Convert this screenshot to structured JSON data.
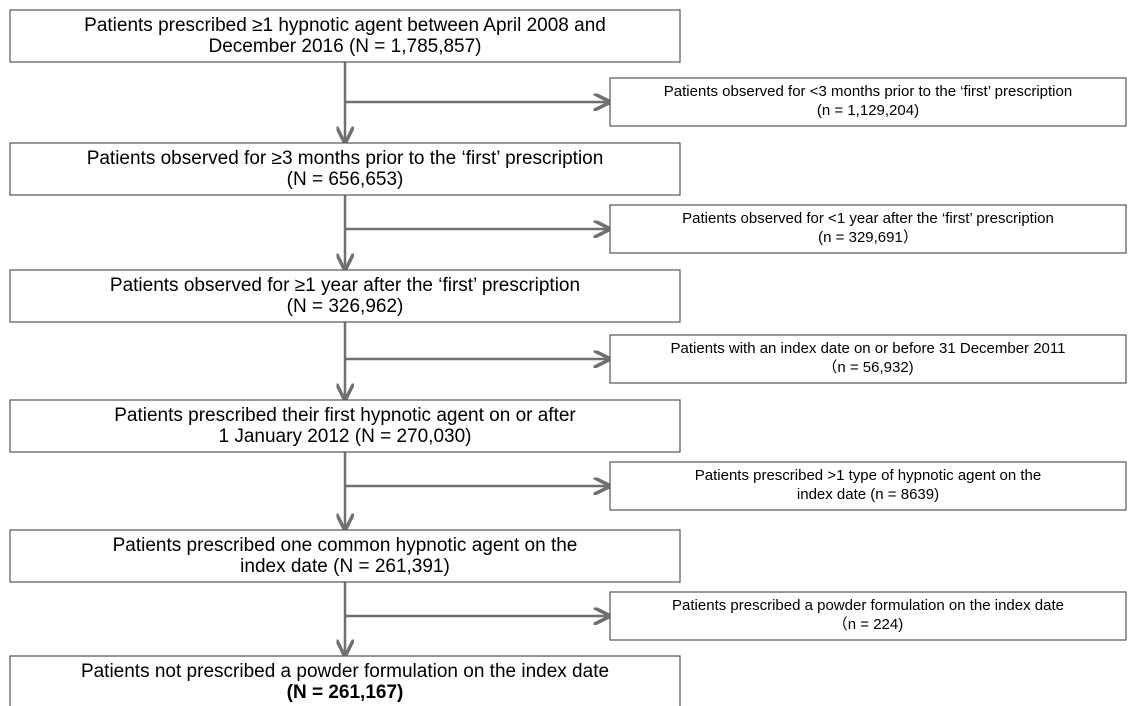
{
  "main_boxes": [
    {
      "lines": [
        "Patients prescribed ≥1 hypnotic agent between April 2008 and",
        "December 2016 (N = 1,785,857)"
      ]
    },
    {
      "lines": [
        "Patients observed for ≥3 months prior to the ‘first’ prescription",
        "(N = 656,653)"
      ]
    },
    {
      "lines": [
        "Patients observed for ≥1 year after the ‘first’ prescription",
        "(N = 326,962)"
      ]
    },
    {
      "lines": [
        "Patients prescribed their first hypnotic agent on or after",
        "1 January 2012 (N = 270,030)"
      ]
    },
    {
      "lines": [
        "Patients prescribed one common hypnotic agent on the",
        "index date (N = 261,391)"
      ]
    },
    {
      "lines": [
        "Patients not prescribed a powder formulation on the index date",
        "(N = 261,167)"
      ]
    }
  ],
  "exclusion_boxes": [
    {
      "lines": [
        "Patients observed for <3 months prior to the ‘first’ prescription",
        "(n = 1,129,204)"
      ]
    },
    {
      "lines": [
        "Patients observed for <1 year after the ‘first’ prescription",
        "(n = 329,691）"
      ]
    },
    {
      "lines": [
        "Patients with an index date on or before 31 December 2011",
        "（n = 56,932)"
      ]
    },
    {
      "lines": [
        "Patients prescribed >1 type of hypnotic agent on the",
        "index date (n = 8639)"
      ]
    },
    {
      "lines": [
        "Patients prescribed a powder formulation on the index date",
        "（n = 224)"
      ]
    }
  ]
}
